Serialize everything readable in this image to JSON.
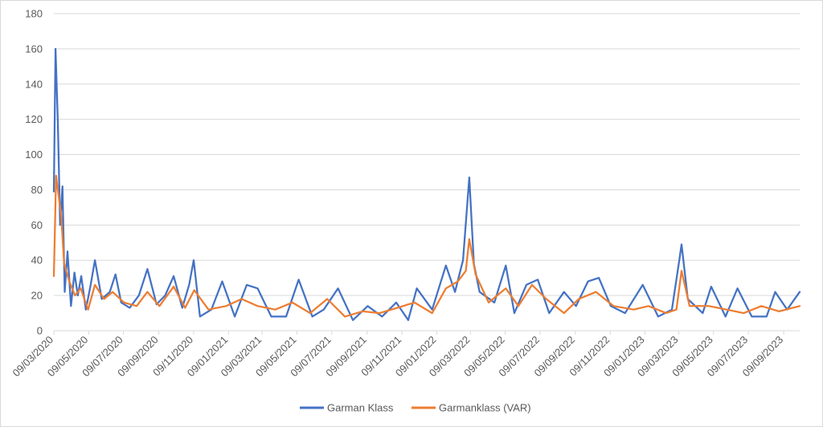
{
  "chart_data": {
    "type": "line",
    "title": "",
    "xlabel": "",
    "ylabel": "",
    "ylim": [
      0,
      180
    ],
    "y_ticks": [
      0,
      20,
      40,
      60,
      80,
      100,
      120,
      140,
      160,
      180
    ],
    "x_range": [
      "2020-03-09",
      "2023-10-07"
    ],
    "x_tick_labels": [
      "09/03/2020",
      "09/05/2020",
      "09/07/2020",
      "09/09/2020",
      "09/11/2020",
      "09/01/2021",
      "09/03/2021",
      "09/05/2021",
      "09/07/2021",
      "09/09/2021",
      "09/11/2021",
      "09/01/2022",
      "09/03/2022",
      "09/05/2022",
      "09/07/2022",
      "09/09/2022",
      "09/11/2022",
      "09/01/2023",
      "09/03/2023",
      "09/05/2023",
      "09/07/2023",
      "09/09/2023"
    ],
    "grid": "horizontal",
    "legend_position": "bottom",
    "series": [
      {
        "name": "Garman Klass",
        "color": "#4472C4",
        "points": [
          [
            "2020-03-09",
            79
          ],
          [
            "2020-03-12",
            160
          ],
          [
            "2020-03-16",
            118
          ],
          [
            "2020-03-20",
            60
          ],
          [
            "2020-03-24",
            82
          ],
          [
            "2020-03-28",
            22
          ],
          [
            "2020-04-02",
            45
          ],
          [
            "2020-04-08",
            14
          ],
          [
            "2020-04-14",
            33
          ],
          [
            "2020-04-20",
            20
          ],
          [
            "2020-04-26",
            31
          ],
          [
            "2020-05-04",
            12
          ],
          [
            "2020-05-12",
            25
          ],
          [
            "2020-05-20",
            40
          ],
          [
            "2020-06-01",
            18
          ],
          [
            "2020-06-15",
            22
          ],
          [
            "2020-06-25",
            32
          ],
          [
            "2020-07-05",
            16
          ],
          [
            "2020-07-20",
            13
          ],
          [
            "2020-08-05",
            20
          ],
          [
            "2020-08-20",
            35
          ],
          [
            "2020-09-05",
            15
          ],
          [
            "2020-09-20",
            20
          ],
          [
            "2020-10-05",
            31
          ],
          [
            "2020-10-20",
            13
          ],
          [
            "2020-11-01",
            26
          ],
          [
            "2020-11-09",
            40
          ],
          [
            "2020-11-20",
            8
          ],
          [
            "2020-12-10",
            12
          ],
          [
            "2020-12-29",
            28
          ],
          [
            "2021-01-20",
            8
          ],
          [
            "2021-02-10",
            26
          ],
          [
            "2021-03-01",
            24
          ],
          [
            "2021-03-25",
            8
          ],
          [
            "2021-04-20",
            8
          ],
          [
            "2021-05-12",
            29
          ],
          [
            "2021-06-05",
            8
          ],
          [
            "2021-06-25",
            12
          ],
          [
            "2021-07-20",
            24
          ],
          [
            "2021-08-15",
            6
          ],
          [
            "2021-09-10",
            14
          ],
          [
            "2021-10-05",
            8
          ],
          [
            "2021-10-30",
            16
          ],
          [
            "2021-11-20",
            6
          ],
          [
            "2021-12-05",
            24
          ],
          [
            "2022-01-01",
            12
          ],
          [
            "2022-01-25",
            37
          ],
          [
            "2022-02-10",
            22
          ],
          [
            "2022-02-24",
            40
          ],
          [
            "2022-03-07",
            87
          ],
          [
            "2022-03-15",
            38
          ],
          [
            "2022-03-25",
            22
          ],
          [
            "2022-04-20",
            16
          ],
          [
            "2022-05-10",
            37
          ],
          [
            "2022-05-25",
            10
          ],
          [
            "2022-06-15",
            26
          ],
          [
            "2022-07-05",
            29
          ],
          [
            "2022-07-25",
            10
          ],
          [
            "2022-08-20",
            22
          ],
          [
            "2022-09-10",
            14
          ],
          [
            "2022-10-01",
            28
          ],
          [
            "2022-10-20",
            30
          ],
          [
            "2022-11-10",
            14
          ],
          [
            "2022-12-05",
            10
          ],
          [
            "2023-01-05",
            26
          ],
          [
            "2023-02-01",
            8
          ],
          [
            "2023-02-25",
            12
          ],
          [
            "2023-03-10",
            40
          ],
          [
            "2023-03-14",
            49
          ],
          [
            "2023-03-25",
            18
          ],
          [
            "2023-04-20",
            10
          ],
          [
            "2023-05-05",
            25
          ],
          [
            "2023-05-30",
            8
          ],
          [
            "2023-06-20",
            24
          ],
          [
            "2023-07-15",
            8
          ],
          [
            "2023-08-10",
            8
          ],
          [
            "2023-08-25",
            22
          ],
          [
            "2023-09-15",
            12
          ],
          [
            "2023-10-07",
            22
          ]
        ]
      },
      {
        "name": "Garmanklass (VAR)",
        "color": "#ED7D31",
        "points": [
          [
            "2020-03-09",
            31
          ],
          [
            "2020-03-13",
            88
          ],
          [
            "2020-03-18",
            75
          ],
          [
            "2020-03-22",
            65
          ],
          [
            "2020-03-27",
            38
          ],
          [
            "2020-04-05",
            28
          ],
          [
            "2020-04-15",
            20
          ],
          [
            "2020-04-25",
            24
          ],
          [
            "2020-05-08",
            12
          ],
          [
            "2020-05-20",
            26
          ],
          [
            "2020-06-05",
            18
          ],
          [
            "2020-06-20",
            22
          ],
          [
            "2020-07-10",
            16
          ],
          [
            "2020-08-01",
            14
          ],
          [
            "2020-08-20",
            22
          ],
          [
            "2020-09-10",
            14
          ],
          [
            "2020-10-05",
            25
          ],
          [
            "2020-10-25",
            13
          ],
          [
            "2020-11-10",
            23
          ],
          [
            "2020-12-05",
            12
          ],
          [
            "2021-01-05",
            14
          ],
          [
            "2021-02-01",
            18
          ],
          [
            "2021-03-01",
            14
          ],
          [
            "2021-04-01",
            12
          ],
          [
            "2021-05-01",
            16
          ],
          [
            "2021-06-01",
            10
          ],
          [
            "2021-07-01",
            18
          ],
          [
            "2021-08-01",
            8
          ],
          [
            "2021-09-01",
            11
          ],
          [
            "2021-10-01",
            10
          ],
          [
            "2021-11-01",
            13
          ],
          [
            "2021-12-01",
            16
          ],
          [
            "2022-01-01",
            10
          ],
          [
            "2022-01-25",
            24
          ],
          [
            "2022-02-15",
            28
          ],
          [
            "2022-03-01",
            34
          ],
          [
            "2022-03-07",
            52
          ],
          [
            "2022-03-18",
            32
          ],
          [
            "2022-04-10",
            16
          ],
          [
            "2022-05-10",
            24
          ],
          [
            "2022-06-01",
            14
          ],
          [
            "2022-06-25",
            26
          ],
          [
            "2022-07-20",
            18
          ],
          [
            "2022-08-20",
            10
          ],
          [
            "2022-09-15",
            18
          ],
          [
            "2022-10-15",
            22
          ],
          [
            "2022-11-15",
            14
          ],
          [
            "2022-12-20",
            12
          ],
          [
            "2023-01-15",
            14
          ],
          [
            "2023-02-15",
            10
          ],
          [
            "2023-03-05",
            12
          ],
          [
            "2023-03-14",
            34
          ],
          [
            "2023-03-28",
            14
          ],
          [
            "2023-05-01",
            14
          ],
          [
            "2023-06-01",
            12
          ],
          [
            "2023-07-01",
            10
          ],
          [
            "2023-08-01",
            14
          ],
          [
            "2023-09-01",
            11
          ],
          [
            "2023-10-07",
            14
          ]
        ]
      }
    ]
  }
}
